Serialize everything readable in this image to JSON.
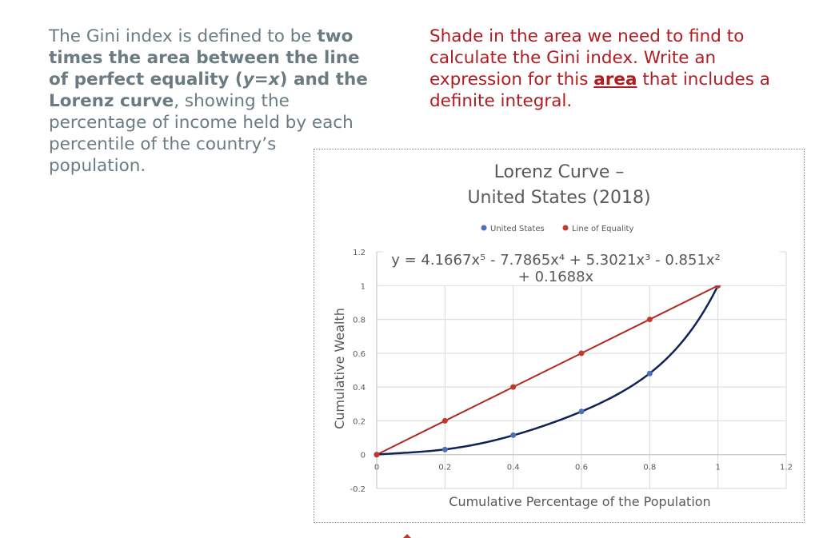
{
  "left_text": {
    "part1": "The Gini index is defined to be ",
    "bold1": "two times the area between the line of perfect equality (",
    "bold_var": "y=x",
    "bold2": ") and the Lorenz curve",
    "part2": ", showing the percentage of income held by each percentile of the country’s population."
  },
  "right_text": {
    "part1": "Shade in the area we need to find to calculate the Gini index. Write an expression for this ",
    "area_word": "area",
    "part2": " that includes a definite integral."
  },
  "chart_data": {
    "type": "scatter",
    "title_lines": [
      "Lorenz Curve –",
      "United States (2018)"
    ],
    "xlabel": "Cumulative Percentage of the Population",
    "ylabel": "Cumulative Wealth",
    "xlim": [
      0,
      1.2
    ],
    "ylim": [
      -0.2,
      1.2
    ],
    "x_ticks": [
      "0",
      "0.2",
      "0.4",
      "0.6",
      "0.8",
      "1",
      "1.2"
    ],
    "y_ticks": [
      "-0.2",
      "0",
      "0.2",
      "0.4",
      "0.6",
      "0.8",
      "1",
      "1.2"
    ],
    "grid": true,
    "legend_position": "top",
    "series": [
      {
        "name": "United States",
        "color": "#4a72b8",
        "x": [
          0,
          0.2,
          0.4,
          0.6,
          0.8,
          1.0
        ],
        "y": [
          0,
          0.03,
          0.115,
          0.255,
          0.48,
          1.0
        ]
      },
      {
        "name": "Line of Equality",
        "color": "#c0392b",
        "x": [
          0,
          0.2,
          0.4,
          0.6,
          0.8,
          1.0
        ],
        "y": [
          0,
          0.2,
          0.4,
          0.6,
          0.8,
          1.0
        ]
      }
    ],
    "trendline": {
      "label_line1": "y = 4.1667x⁵ - 7.7865x⁴ + 5.3021x³ - 0.851x²",
      "label_line2": "+ 0.1688x",
      "coefficients": [
        4.1667,
        -7.7865,
        5.3021,
        -0.851,
        0.1688,
        0
      ],
      "color": "#0f2456"
    },
    "equality_line_color": "#b02a22"
  }
}
